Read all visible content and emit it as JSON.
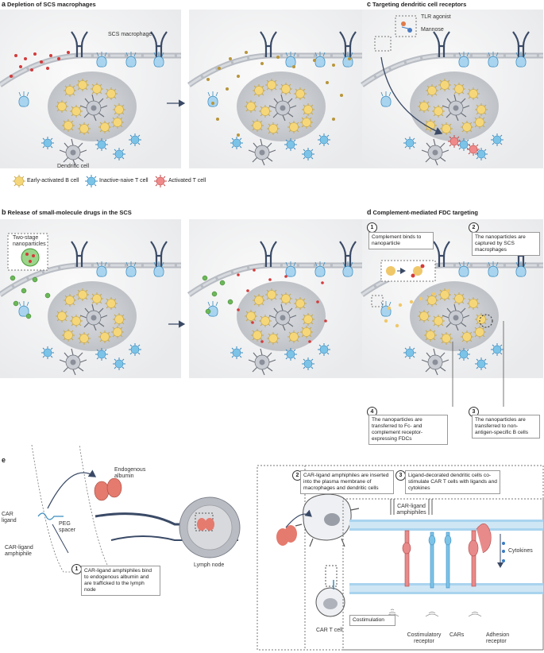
{
  "panels": {
    "a": {
      "letter": "a",
      "title": "Depletion of SCS macrophages",
      "scs_macrophage": "SCS macrophage",
      "dendritic_cell": "Dendritic cell"
    },
    "b": {
      "letter": "b",
      "title": "Release of small-molecule drugs in the SCS",
      "two_stage": "Two-stage\nnanoparticles"
    },
    "c": {
      "letter": "c",
      "title": "Targeting dendritic cell receptors",
      "tlr_agonist": "TLR agonist",
      "mannose": "Mannose"
    },
    "d": {
      "letter": "d",
      "title": "Complement-mediated FDC targeting",
      "steps": [
        {
          "n": "1",
          "text": "Complement binds to nanoparticle"
        },
        {
          "n": "2",
          "text": "The nanoparticles are captured by SCS macrophages"
        },
        {
          "n": "3",
          "text": "The nanoparticles are transferred to non-antigen-specific B cells"
        },
        {
          "n": "4",
          "text": "The nanoparticles are transferred to Fc- and complement receptor-expressing FDCs"
        }
      ]
    },
    "e": {
      "letter": "e",
      "car_ligand": "CAR ligand",
      "peg_spacer": "PEG spacer",
      "car_ligand_amphiphile": "CAR-ligand amphiphile",
      "endogenous_albumin": "Endogenous albumin",
      "lymph_node": "Lymph node",
      "car_t_cell": "CAR T cell",
      "steps": [
        {
          "n": "1",
          "text": "CAR-ligand amphiphiles bind to endogenous albumin and are trafficked to the lymph node"
        },
        {
          "n": "2",
          "text": "CAR-ligand amphiphiles are inserted into the plasma membrane of macrophages and dendritic cells"
        },
        {
          "n": "3",
          "text": "Ligand-decorated dendritic cells co-stimulate CAR T cells with ligands and cytokines"
        }
      ],
      "car_ligand_amphiphiles": "CAR-ligand amphiphiles",
      "cytokines": "Cytokines",
      "costimulation": "Costimulation",
      "costimulatory_receptor": "Costimulatory receptor",
      "cars": "CARs",
      "adhesion_receptor": "Adhesion receptor"
    }
  },
  "legend": [
    {
      "label": "Early-activated B cell",
      "color": "#f5d77a"
    },
    {
      "label": "Inactive-naive T cell",
      "color": "#7cc3e8"
    },
    {
      "label": "Activated T cell",
      "color": "#f08a8a"
    }
  ]
}
